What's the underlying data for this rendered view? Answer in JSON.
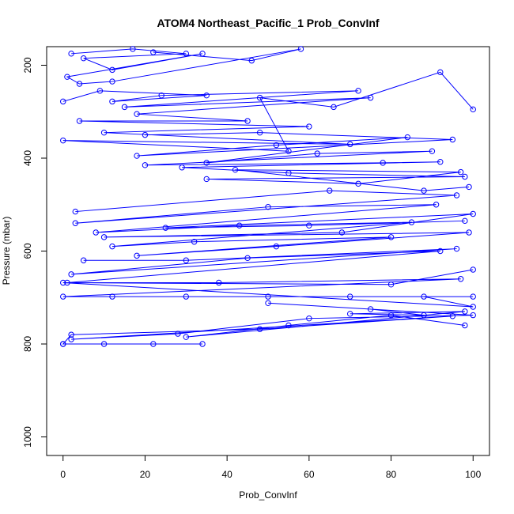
{
  "chart_data": {
    "type": "scatter",
    "title": "ATOM4 Northeast_Pacific_1 Prob_ConvInf",
    "xlabel": "Prob_ConvInf",
    "ylabel": "Pressure (mbar)",
    "xlim": [
      -4,
      104
    ],
    "ylim": [
      1040,
      160
    ],
    "y_reversed": true,
    "x_ticks": [
      0,
      20,
      40,
      60,
      80,
      100
    ],
    "y_ticks": [
      200,
      400,
      600,
      800,
      1000
    ],
    "grid": false,
    "legend": "none",
    "marker": "open-circle",
    "connect_points": true,
    "color": "#0000ff",
    "series": [
      {
        "points": [
          [
            2,
            175
          ],
          [
            17,
            165
          ],
          [
            30,
            175
          ],
          [
            5,
            185
          ],
          [
            12,
            210
          ],
          [
            34,
            175
          ],
          [
            1,
            225
          ],
          [
            4,
            240
          ],
          [
            12,
            235
          ],
          [
            58,
            165
          ],
          [
            46,
            190
          ],
          [
            22,
            172
          ]
        ]
      },
      {
        "points": [
          [
            0,
            278
          ],
          [
            9,
            255
          ],
          [
            35,
            265
          ],
          [
            12,
            278
          ],
          [
            24,
            265
          ],
          [
            72,
            255
          ],
          [
            15,
            290
          ],
          [
            75,
            270
          ],
          [
            18,
            305
          ],
          [
            45,
            320
          ],
          [
            4,
            320
          ],
          [
            60,
            332
          ],
          [
            10,
            345
          ],
          [
            70,
            370
          ],
          [
            0,
            362
          ],
          [
            55,
            385
          ],
          [
            48,
            270
          ],
          [
            66,
            290
          ],
          [
            92,
            215
          ],
          [
            100,
            295
          ]
        ]
      },
      {
        "points": [
          [
            20,
            350
          ],
          [
            48,
            345
          ],
          [
            95,
            360
          ],
          [
            18,
            395
          ],
          [
            52,
            372
          ],
          [
            84,
            355
          ],
          [
            35,
            410
          ],
          [
            62,
            390
          ],
          [
            90,
            385
          ],
          [
            20,
            415
          ],
          [
            78,
            410
          ],
          [
            92,
            408
          ],
          [
            29,
            420
          ],
          [
            55,
            432
          ],
          [
            98,
            440
          ],
          [
            35,
            445
          ],
          [
            72,
            455
          ],
          [
            97,
            430
          ],
          [
            42,
            425
          ],
          [
            88,
            470
          ],
          [
            99,
            462
          ]
        ]
      },
      {
        "points": [
          [
            3,
            515
          ],
          [
            65,
            470
          ],
          [
            96,
            480
          ],
          [
            3,
            540
          ],
          [
            50,
            505
          ],
          [
            91,
            500
          ],
          [
            8,
            560
          ],
          [
            43,
            545
          ],
          [
            85,
            538
          ],
          [
            12,
            590
          ],
          [
            32,
            580
          ],
          [
            80,
            570
          ],
          [
            18,
            610
          ],
          [
            52,
            590
          ],
          [
            99,
            560
          ],
          [
            10,
            570
          ],
          [
            68,
            560
          ],
          [
            100,
            520
          ],
          [
            25,
            550
          ],
          [
            60,
            545
          ],
          [
            98,
            535
          ]
        ]
      },
      {
        "points": [
          [
            5,
            620
          ],
          [
            30,
            620
          ],
          [
            96,
            595
          ],
          [
            2,
            650
          ],
          [
            45,
            615
          ],
          [
            92,
            600
          ],
          [
            1,
            668
          ],
          [
            38,
            668
          ],
          [
            97,
            660
          ],
          [
            0,
            698
          ],
          [
            30,
            698
          ],
          [
            70,
            698
          ],
          [
            100,
            698
          ],
          [
            12,
            698
          ],
          [
            50,
            698
          ],
          [
            88,
            698
          ],
          [
            100,
            720
          ],
          [
            0,
            668
          ],
          [
            80,
            672
          ],
          [
            100,
            640
          ]
        ]
      },
      {
        "points": [
          [
            0,
            800
          ],
          [
            10,
            800
          ],
          [
            22,
            800
          ],
          [
            34,
            800
          ],
          [
            0,
            800
          ],
          [
            2,
            780
          ],
          [
            48,
            768
          ],
          [
            95,
            740
          ],
          [
            2,
            790
          ],
          [
            28,
            778
          ],
          [
            60,
            745
          ],
          [
            100,
            738
          ],
          [
            50,
            712
          ],
          [
            75,
            725
          ],
          [
            88,
            738
          ],
          [
            70,
            735
          ],
          [
            98,
            730
          ],
          [
            30,
            785
          ],
          [
            55,
            760
          ],
          [
            80,
            738
          ],
          [
            98,
            760
          ]
        ]
      }
    ]
  }
}
